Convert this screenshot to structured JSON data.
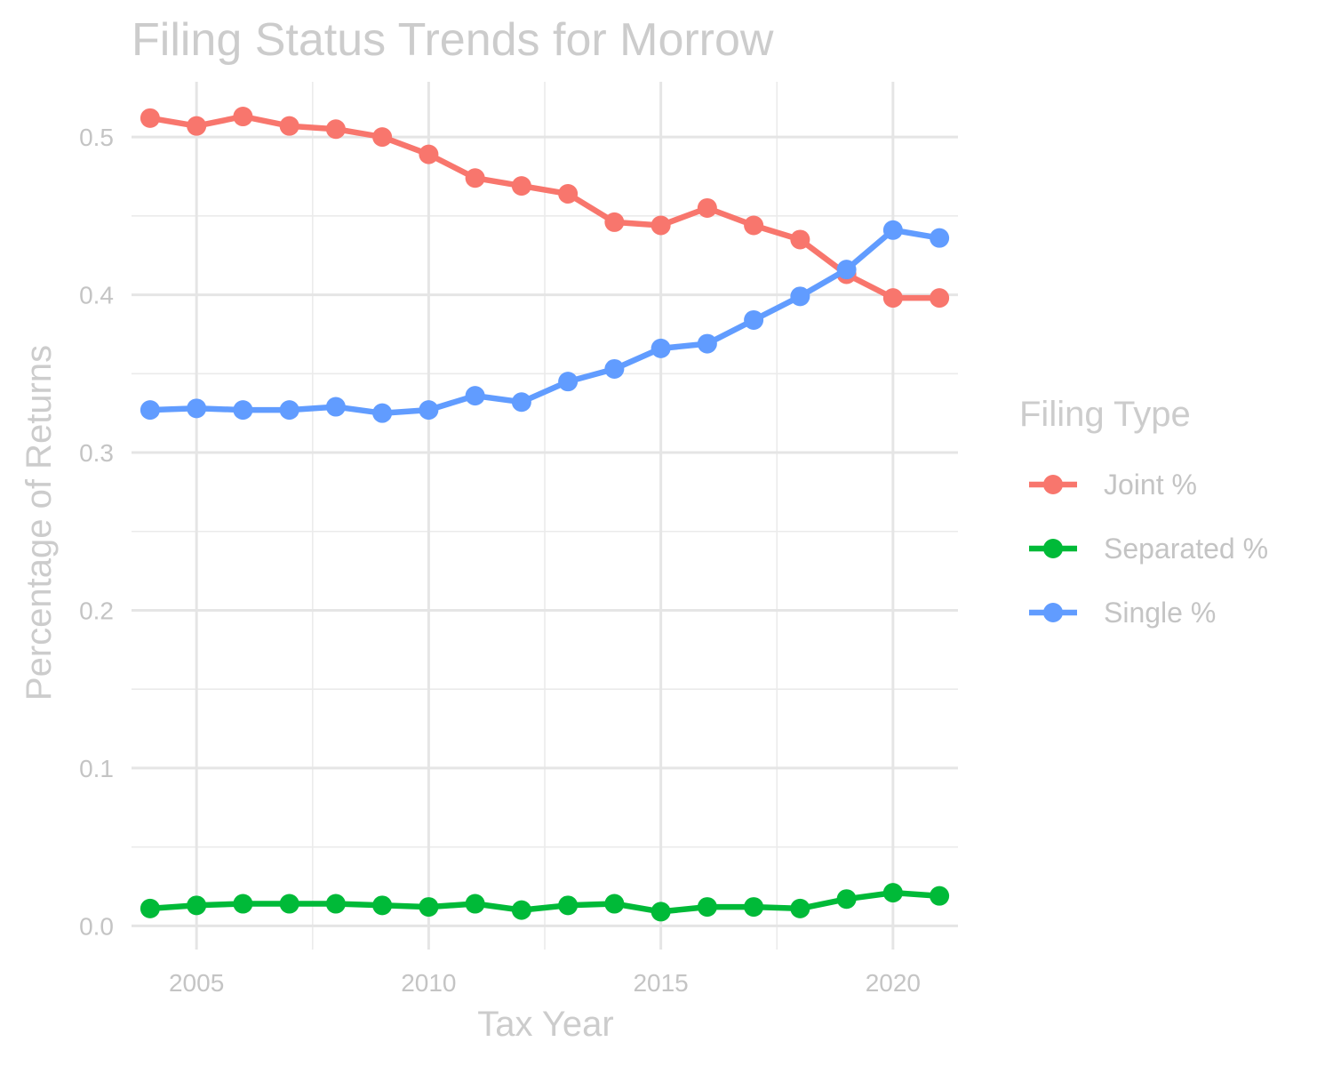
{
  "chart_data": {
    "type": "line",
    "title": "Filing Status Trends for Morrow",
    "xlabel": "Tax Year",
    "ylabel": "Percentage of Returns",
    "xlim": [
      2003.6,
      2021.4
    ],
    "ylim": [
      -0.015,
      0.535
    ],
    "x_ticks": [
      2005,
      2010,
      2015,
      2020
    ],
    "y_ticks": [
      0.0,
      0.1,
      0.2,
      0.3,
      0.4,
      0.5
    ],
    "x_tick_labels": [
      "2005",
      "2010",
      "2015",
      "2020"
    ],
    "y_tick_labels": [
      "0.0",
      "0.1",
      "0.2",
      "0.3",
      "0.4",
      "0.5"
    ],
    "grid": true,
    "legend_title": "Filing Type",
    "legend_position": "right",
    "x": [
      2004,
      2005,
      2006,
      2007,
      2008,
      2009,
      2010,
      2011,
      2012,
      2013,
      2014,
      2015,
      2016,
      2017,
      2018,
      2019,
      2020,
      2021
    ],
    "series": [
      {
        "name": "Joint %",
        "color": "#F8766D",
        "values": [
          0.512,
          0.507,
          0.513,
          0.507,
          0.505,
          0.5,
          0.489,
          0.474,
          0.469,
          0.464,
          0.446,
          0.444,
          0.455,
          0.444,
          0.435,
          0.413,
          0.398,
          0.398
        ]
      },
      {
        "name": "Separated %",
        "color": "#00BA38",
        "values": [
          0.011,
          0.013,
          0.014,
          0.014,
          0.014,
          0.013,
          0.012,
          0.014,
          0.01,
          0.013,
          0.014,
          0.009,
          0.012,
          0.012,
          0.011,
          0.017,
          0.021,
          0.019
        ]
      },
      {
        "name": "Single %",
        "color": "#619CFF",
        "values": [
          0.327,
          0.328,
          0.327,
          0.327,
          0.329,
          0.325,
          0.327,
          0.336,
          0.332,
          0.345,
          0.353,
          0.366,
          0.369,
          0.384,
          0.399,
          0.416,
          0.441,
          0.436
        ]
      }
    ]
  }
}
